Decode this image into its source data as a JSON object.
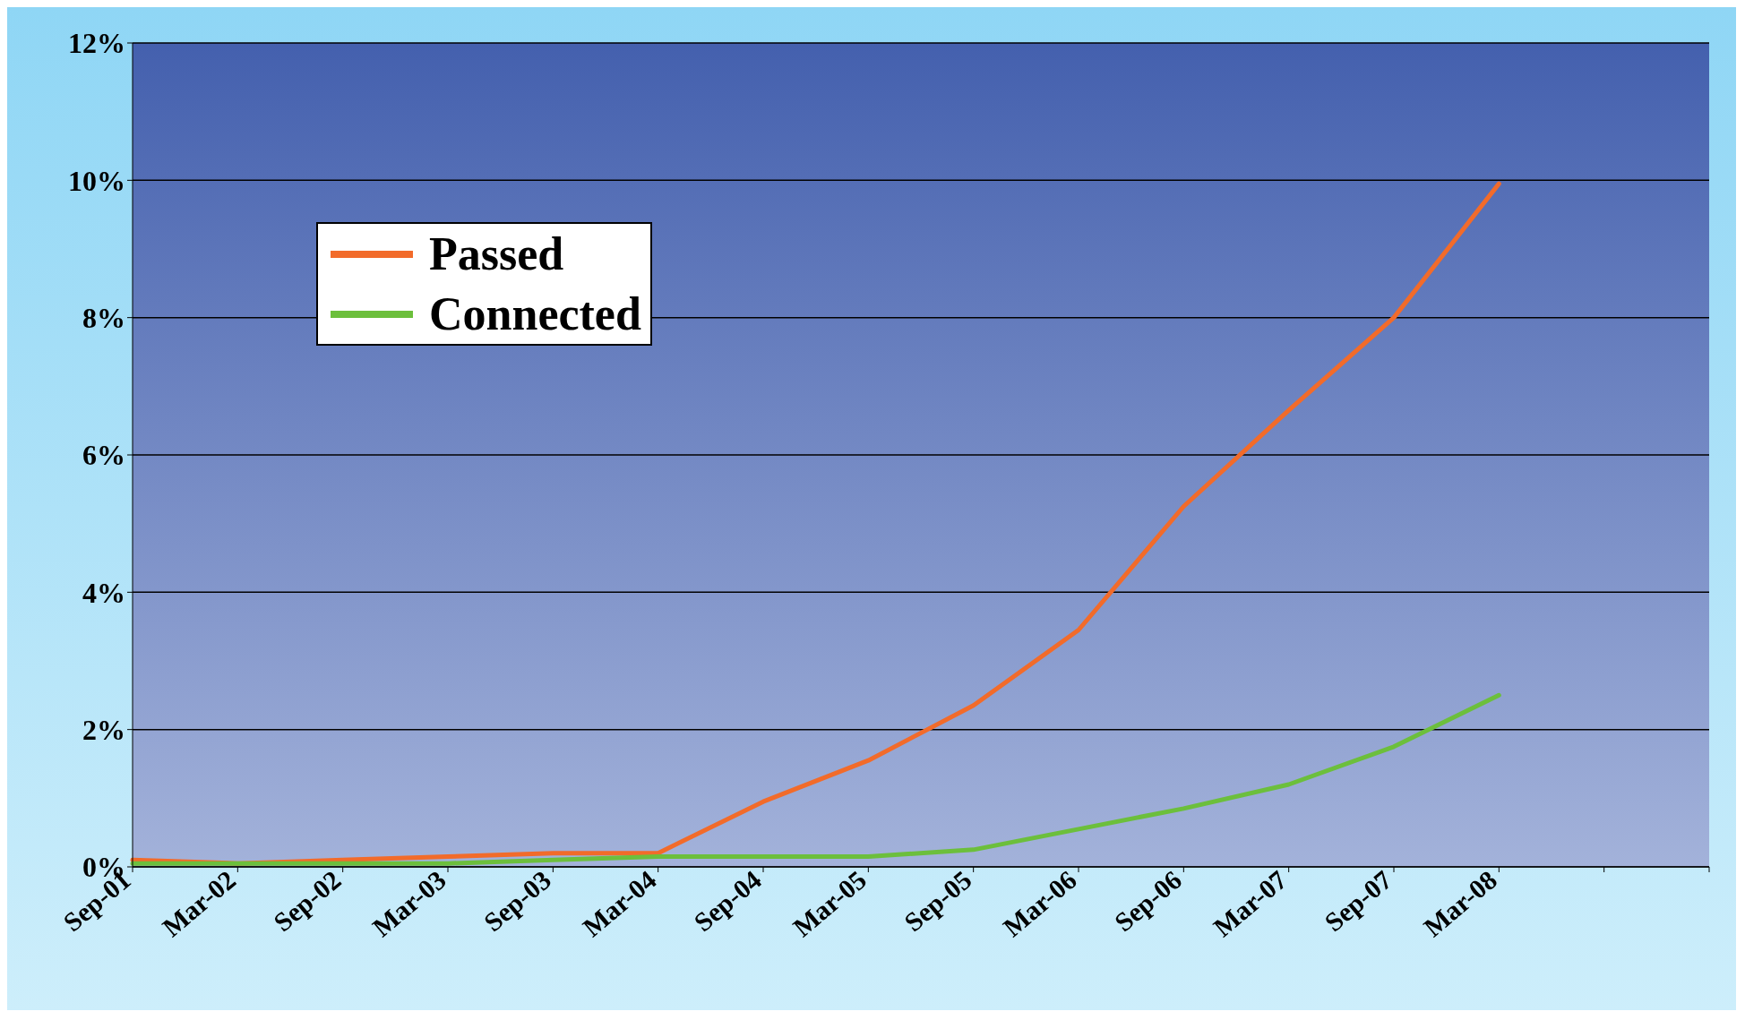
{
  "chart_data": {
    "type": "line",
    "categories": [
      "Sep-01",
      "Mar-02",
      "Sep-02",
      "Mar-03",
      "Sep-03",
      "Mar-04",
      "Sep-04",
      "Mar-05",
      "Sep-05",
      "Mar-06",
      "Sep-06",
      "Mar-07",
      "Sep-07",
      "Mar-08",
      null,
      null
    ],
    "series": [
      {
        "name": "Passed",
        "color": "#f26b2a",
        "values": [
          0.1,
          0.05,
          0.1,
          0.15,
          0.2,
          0.2,
          0.95,
          1.55,
          2.35,
          3.45,
          5.25,
          6.65,
          8.0,
          9.95,
          null,
          null
        ]
      },
      {
        "name": "Connected",
        "color": "#6cbf3c",
        "values": [
          0.05,
          0.05,
          0.05,
          0.05,
          0.1,
          0.15,
          0.15,
          0.15,
          0.25,
          0.55,
          0.85,
          1.2,
          1.75,
          2.5,
          null,
          null
        ]
      }
    ],
    "ylim": [
      0,
      12
    ],
    "yticks": [
      {
        "value": 0,
        "label": "0%"
      },
      {
        "value": 2,
        "label": "2%"
      },
      {
        "value": 4,
        "label": "4%"
      },
      {
        "value": 6,
        "label": "6%"
      },
      {
        "value": 8,
        "label": "8%"
      },
      {
        "value": 10,
        "label": "10%"
      },
      {
        "value": 12,
        "label": "12%"
      }
    ],
    "grid": "y",
    "legend": "top left",
    "marker": "none",
    "line_style": "solid"
  }
}
